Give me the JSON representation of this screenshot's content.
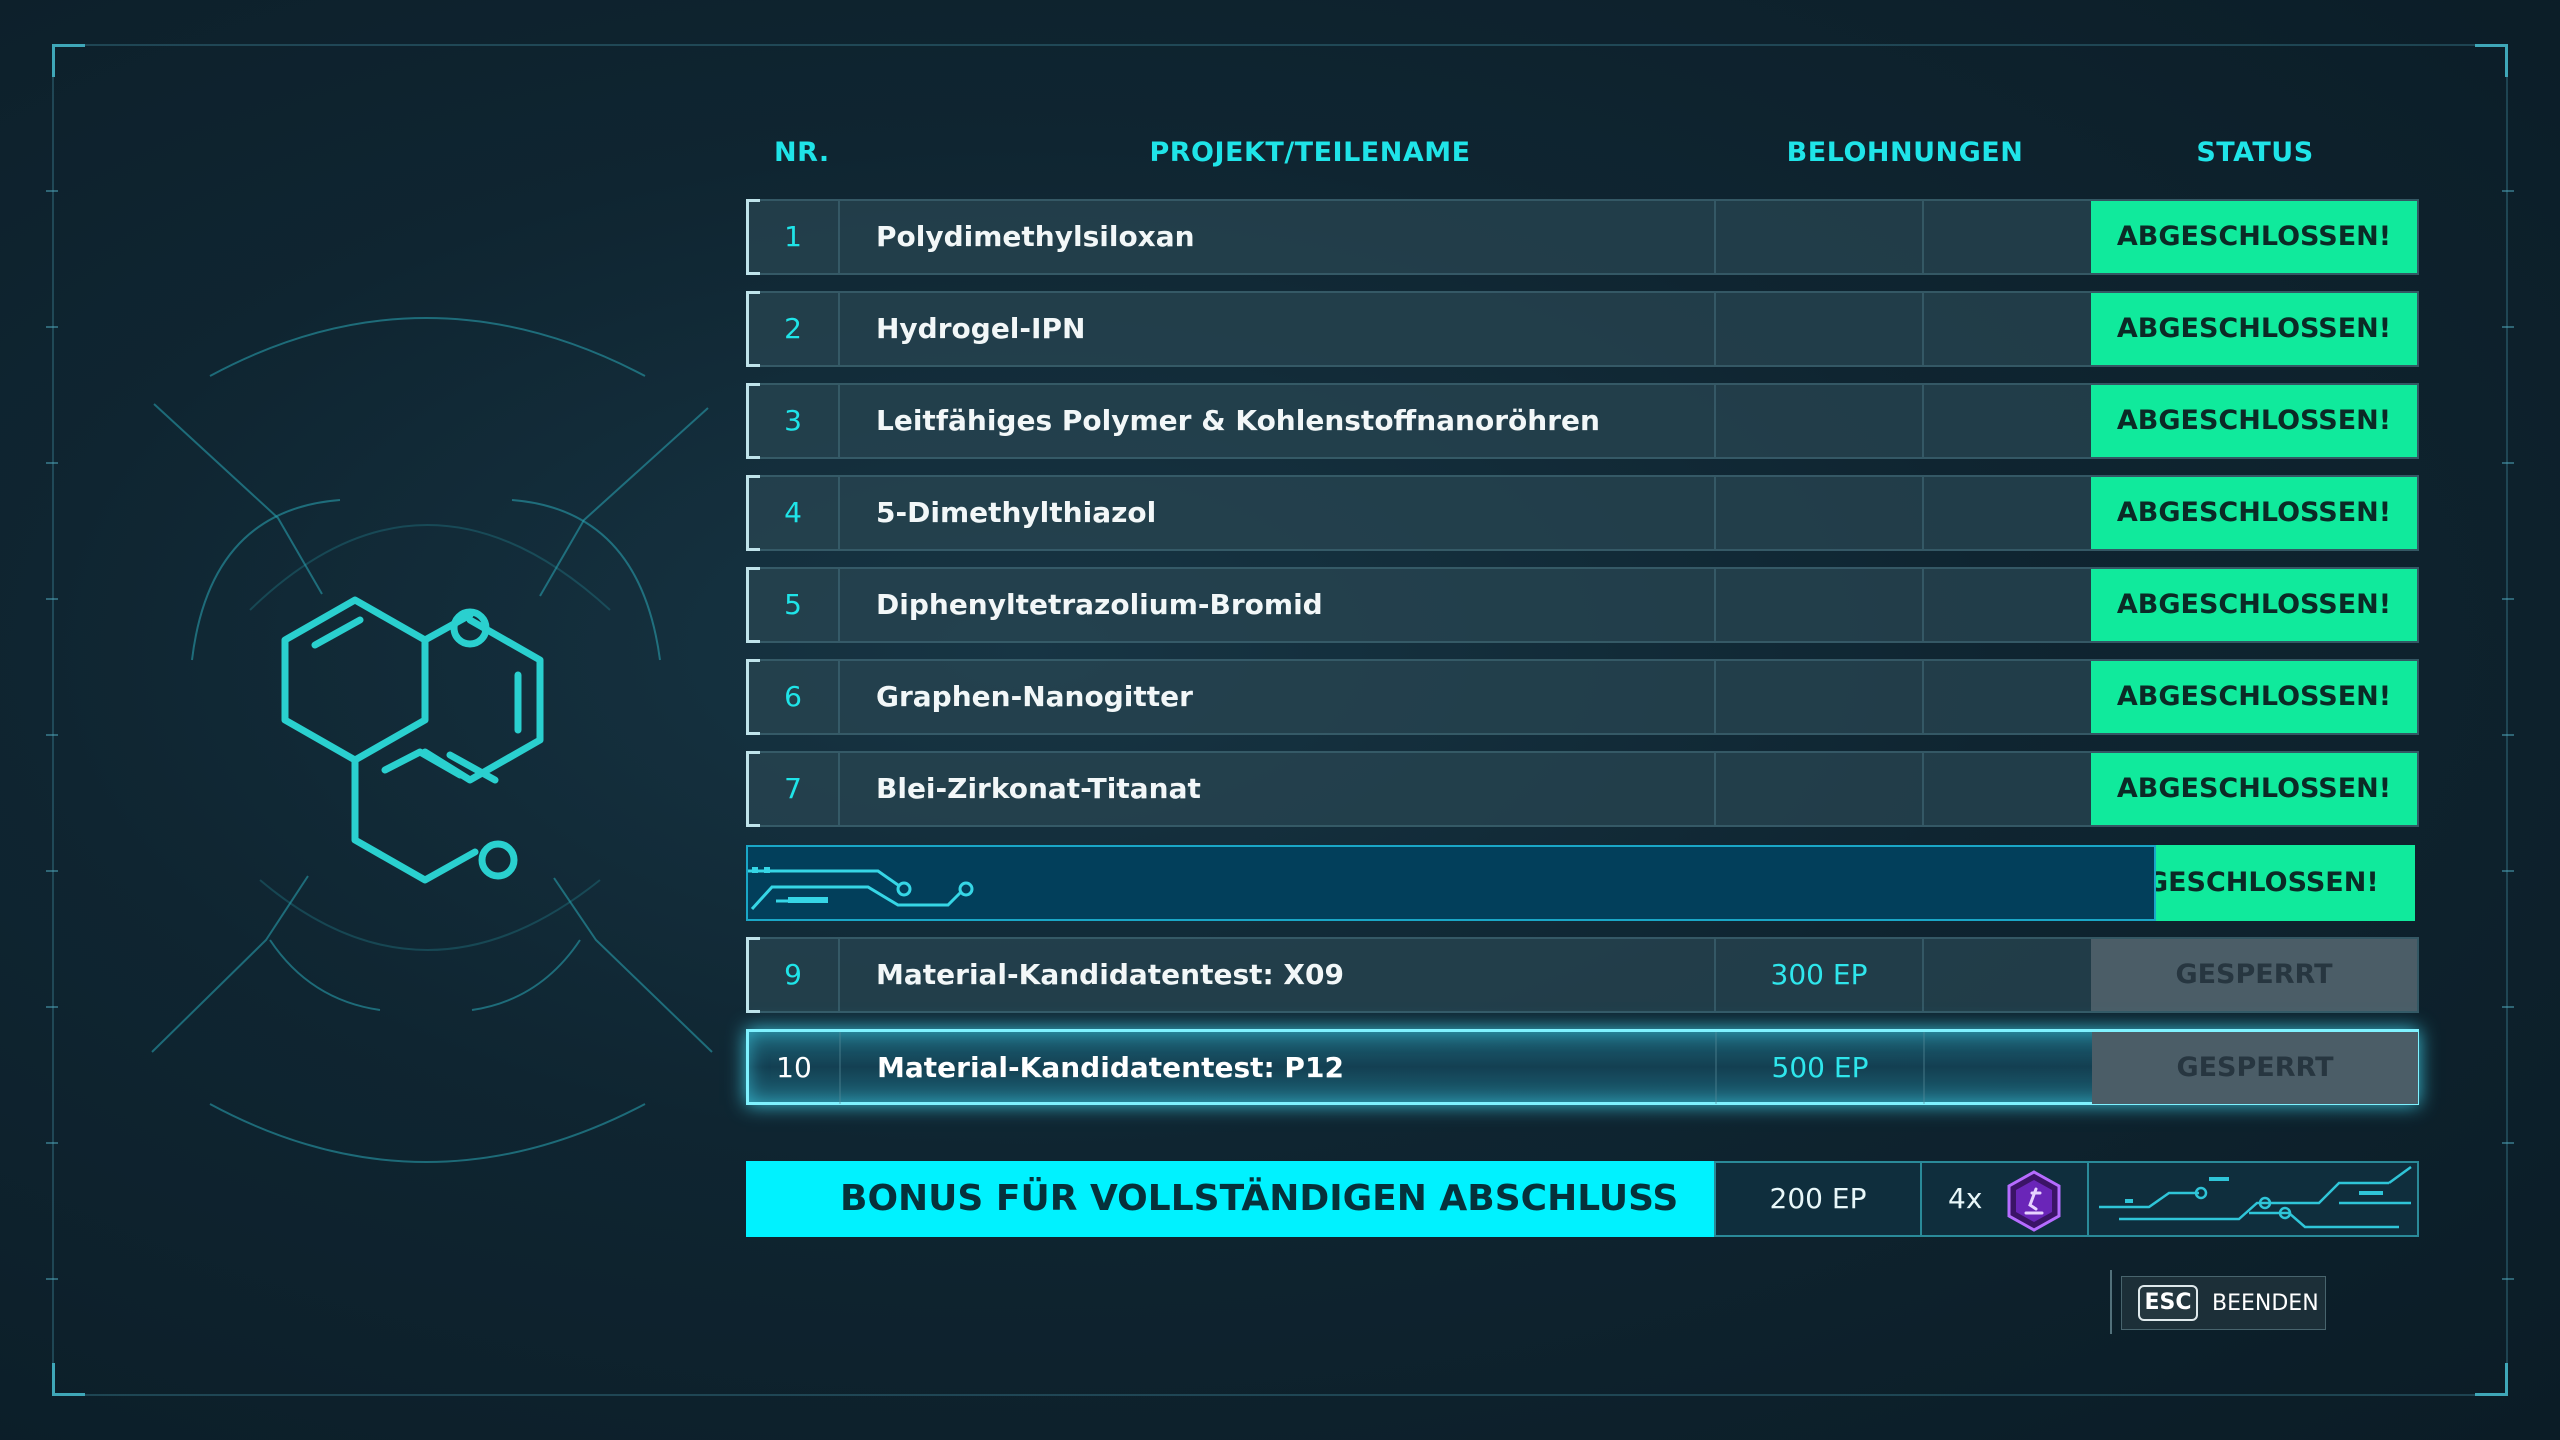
{
  "headers": {
    "nr": "NR.",
    "name": "PROJEKT/TEILENAME",
    "rewards": "BELOHNUNGEN",
    "status": "STATUS"
  },
  "rows": [
    {
      "nr": "1",
      "name": "Polydimethylsiloxan",
      "reward": "",
      "status": "ABGESCHLOSSEN!"
    },
    {
      "nr": "2",
      "name": "Hydrogel-IPN",
      "reward": "",
      "status": "ABGESCHLOSSEN!"
    },
    {
      "nr": "3",
      "name": "Leitfähiges Polymer & Kohlenstoffnanoröhren",
      "reward": "",
      "status": "ABGESCHLOSSEN!"
    },
    {
      "nr": "4",
      "name": "5-Dimethylthiazol",
      "reward": "",
      "status": "ABGESCHLOSSEN!"
    },
    {
      "nr": "5",
      "name": "Diphenyltetrazolium-Bromid",
      "reward": "",
      "status": "ABGESCHLOSSEN!"
    },
    {
      "nr": "6",
      "name": "Graphen-Nanogitter",
      "reward": "",
      "status": "ABGESCHLOSSEN!"
    },
    {
      "nr": "7",
      "name": "Blei-Zirkonat-Titanat",
      "reward": "",
      "status": "ABGESCHLOSSEN!"
    },
    {
      "nr": "",
      "name": "",
      "reward": "",
      "status": "BGESCHLOSSEN!"
    },
    {
      "nr": "9",
      "name": "Material-Kandidatentest: X09",
      "reward": "300 EP",
      "status": "GESPERRT"
    },
    {
      "nr": "10",
      "name": "Material-Kandidatentest: P12",
      "reward": "500 EP",
      "status": "GESPERRT"
    }
  ],
  "bonus": {
    "title": "BONUS FÜR VOLLSTÄNDIGEN ABSCHLUSS",
    "ep": "200 EP",
    "multiplier": "4x",
    "token_icon": "research-token-icon"
  },
  "footer": {
    "esc_key": "ESC",
    "esc_label": "BEENDEN"
  },
  "colors": {
    "accent": "#1fe4e8",
    "completed": "#10ea9c",
    "locked": "#4b5d67",
    "bonus": "#00f2ff",
    "token": "#7b2fd0"
  }
}
